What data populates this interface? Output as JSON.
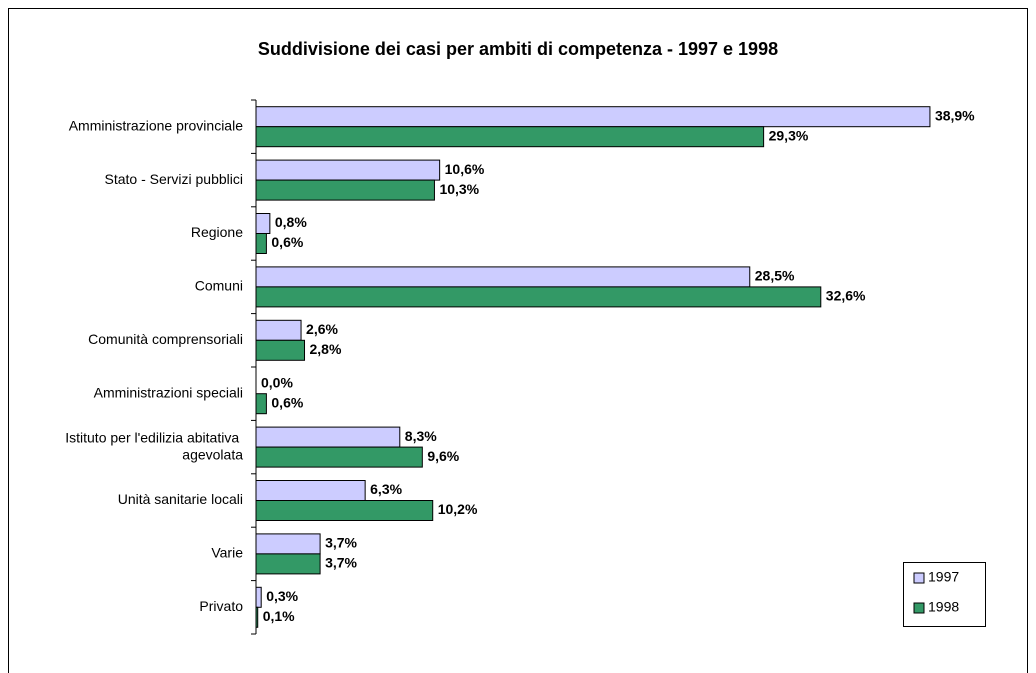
{
  "chart_data": {
    "type": "barh",
    "title": "Suddivisione dei casi per ambiti di competenza - 1997 e 1998",
    "categories": [
      "Amministrazione provinciale",
      "Stato - Servizi pubblici",
      "Regione",
      "Comuni",
      "Comunità comprensoriali",
      "Amministrazioni speciali",
      "Istituto per l'edilizia abitativa agevolata",
      "Unità sanitarie locali",
      "Varie",
      "Privato"
    ],
    "series": [
      {
        "name": "1997",
        "color": "#ccccff",
        "values": [
          38.9,
          10.6,
          0.8,
          28.5,
          2.6,
          0.0,
          8.3,
          6.3,
          3.7,
          0.3
        ],
        "value_labels": [
          "38,9%",
          "10,6%",
          "0,8%",
          "28,5%",
          "2,6%",
          "0,0%",
          "8,3%",
          "6,3%",
          "3,7%",
          "0,3%"
        ]
      },
      {
        "name": "1998",
        "color": "#339966",
        "values": [
          29.3,
          10.3,
          0.6,
          32.6,
          2.8,
          0.6,
          9.6,
          10.2,
          3.7,
          0.1
        ],
        "value_labels": [
          "29,3%",
          "10,3%",
          "0,6%",
          "32,6%",
          "2,8%",
          "0,6%",
          "9,6%",
          "10,2%",
          "3,7%",
          "0,1%"
        ]
      }
    ],
    "xlim": [
      0,
      40
    ],
    "legend": "lower right"
  }
}
